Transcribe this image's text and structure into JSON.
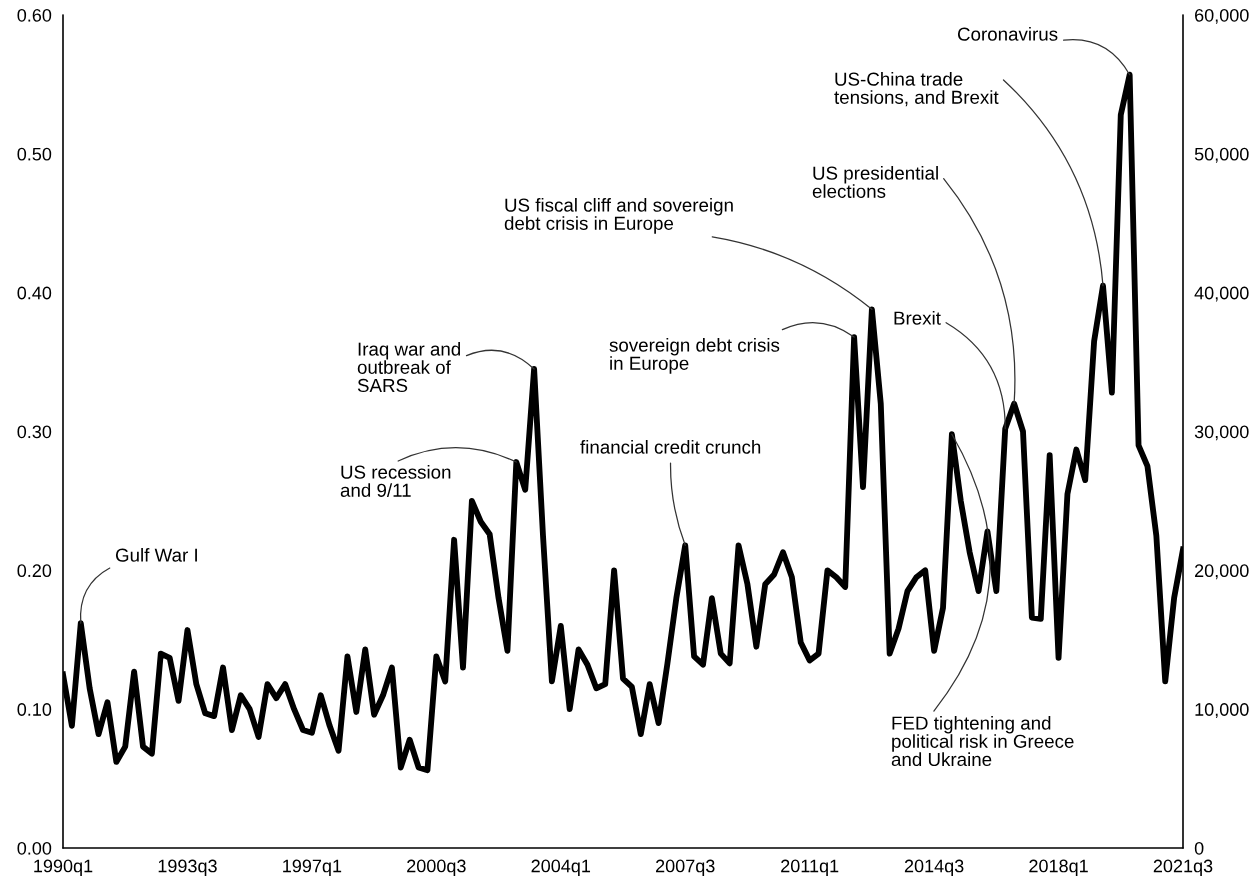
{
  "chart_data": {
    "type": "line",
    "x": [
      "1990-01",
      "1990-04",
      "1990-07",
      "1990-10",
      "1991-01",
      "1991-04",
      "1991-07",
      "1991-10",
      "1992-01",
      "1992-04",
      "1992-07",
      "1992-10",
      "1993-01",
      "1993-04",
      "1993-07",
      "1993-10",
      "1994-01",
      "1994-04",
      "1994-07",
      "1994-10",
      "1995-01",
      "1995-04",
      "1995-07",
      "1995-10",
      "1996-01",
      "1996-04",
      "1996-07",
      "1996-10",
      "1997-01",
      "1997-04",
      "1997-07",
      "1997-10",
      "1998-01",
      "1998-04",
      "1998-07",
      "1998-10",
      "1999-01",
      "1999-04",
      "1999-07",
      "1999-10",
      "2000-01",
      "2000-04",
      "2000-07",
      "2000-10",
      "2001-01",
      "2001-04",
      "2001-07",
      "2001-10",
      "2002-01",
      "2002-04",
      "2002-07",
      "2002-10",
      "2003-01",
      "2003-04",
      "2003-07",
      "2003-10",
      "2004-01",
      "2004-04",
      "2004-07",
      "2004-10",
      "2005-01",
      "2005-04",
      "2005-07",
      "2005-10",
      "2006-01",
      "2006-04",
      "2006-07",
      "2006-10",
      "2007-01",
      "2007-04",
      "2007-07",
      "2007-10",
      "2008-01",
      "2008-04",
      "2008-07",
      "2008-10",
      "2009-01",
      "2009-04",
      "2009-07",
      "2009-10",
      "2010-01",
      "2010-04",
      "2010-07",
      "2010-10",
      "2011-01",
      "2011-04",
      "2011-07",
      "2011-10",
      "2012-01",
      "2012-04",
      "2012-07",
      "2012-10",
      "2013-01",
      "2013-04",
      "2013-07",
      "2013-10",
      "2014-01",
      "2014-04",
      "2014-07",
      "2014-10",
      "2015-01",
      "2015-04",
      "2015-07",
      "2015-10",
      "2016-01",
      "2016-04",
      "2016-07",
      "2016-10",
      "2017-01",
      "2017-04",
      "2017-07",
      "2017-10",
      "2018-01",
      "2018-04",
      "2018-07",
      "2018-10",
      "2019-01",
      "2019-04",
      "2019-07",
      "2019-10",
      "2020-01",
      "2020-04",
      "2020-07",
      "2020-10",
      "2021-01",
      "2021-04",
      "2021-07"
    ],
    "series": [
      {
        "color": "#000000",
        "values": [
          0.125,
          0.088,
          0.162,
          0.115,
          0.082,
          0.105,
          0.062,
          0.073,
          0.127,
          0.073,
          0.068,
          0.14,
          0.137,
          0.106,
          0.157,
          0.118,
          0.097,
          0.095,
          0.13,
          0.085,
          0.11,
          0.1,
          0.08,
          0.118,
          0.108,
          0.118,
          0.1,
          0.085,
          0.083,
          0.11,
          0.088,
          0.07,
          0.138,
          0.098,
          0.143,
          0.096,
          0.11,
          0.13,
          0.058,
          0.078,
          0.058,
          0.056,
          0.138,
          0.12,
          0.222,
          0.13,
          0.25,
          0.235,
          0.226,
          0.18,
          0.142,
          0.278,
          0.258,
          0.345,
          0.225,
          0.12,
          0.16,
          0.1,
          0.143,
          0.132,
          0.115,
          0.118,
          0.2,
          0.122,
          0.116,
          0.082,
          0.118,
          0.09,
          0.133,
          0.18,
          0.218,
          0.138,
          0.132,
          0.18,
          0.14,
          0.133,
          0.218,
          0.19,
          0.145,
          0.19,
          0.197,
          0.213,
          0.195,
          0.148,
          0.135,
          0.14,
          0.2,
          0.195,
          0.188,
          0.368,
          0.26,
          0.388,
          0.32,
          0.14,
          0.158,
          0.185,
          0.195,
          0.2,
          0.142,
          0.173,
          0.298,
          0.25,
          0.213,
          0.185,
          0.228,
          0.185,
          0.302,
          0.32,
          0.3,
          0.166,
          0.165,
          0.283,
          0.137,
          0.255,
          0.287,
          0.265,
          0.365,
          0.405,
          0.328,
          0.528,
          0.557,
          0.29,
          0.275,
          0.225,
          0.12,
          0.18,
          0.215
        ]
      }
    ],
    "xlim": [
      "1990-01",
      "2021-07"
    ],
    "xticks": [
      {
        "value": "1990-01",
        "label": "1990q1"
      },
      {
        "value": "1993-07",
        "label": "1993q3"
      },
      {
        "value": "1997-01",
        "label": "1997q1"
      },
      {
        "value": "2000-07",
        "label": "2000q3"
      },
      {
        "value": "2004-01",
        "label": "2004q1"
      },
      {
        "value": "2007-07",
        "label": "2007q3"
      },
      {
        "value": "2011-01",
        "label": "2011q1"
      },
      {
        "value": "2014-07",
        "label": "2014q3"
      },
      {
        "value": "2018-01",
        "label": "2018q1"
      },
      {
        "value": "2021-07",
        "label": "2021q3"
      }
    ],
    "ylim": [
      0,
      0.6
    ],
    "yticks": [
      {
        "value": 0,
        "label": "0.00"
      },
      {
        "value": 0.1,
        "label": "0.10"
      },
      {
        "value": 0.2,
        "label": "0.20"
      },
      {
        "value": 0.3,
        "label": "0.30"
      },
      {
        "value": 0.4,
        "label": "0.40"
      },
      {
        "value": 0.5,
        "label": "0.50"
      },
      {
        "value": 0.6,
        "label": "0.60"
      }
    ],
    "y2lim": [
      0,
      60000
    ],
    "y2ticks": [
      0,
      {
        "value": 10000,
        "label": "10,000"
      },
      {
        "value": 20000,
        "label": "20,000"
      },
      {
        "value": 30000,
        "label": "30,000"
      },
      {
        "value": 40000,
        "label": "40,000"
      },
      {
        "value": 50000,
        "label": "50,000"
      },
      {
        "value": 60000,
        "label": "60,000"
      }
    ],
    "annotations": [
      {
        "text": "Gulf War I",
        "x": "1990-07",
        "y": 0.162
      },
      {
        "text": "US recession\nand 9/11",
        "x": "2002-10",
        "y": 0.278
      },
      {
        "text": "Iraq war and\noutbreak of\nSARS",
        "x": "2003-04",
        "y": 0.345
      },
      {
        "text": "financial credit crunch",
        "x": "2007-07",
        "y": 0.218
      },
      {
        "text": "sovereign debt crisis\nin Europe",
        "x": "2012-04",
        "y": 0.368
      },
      {
        "text": "US fiscal cliff and sovereign\ndebt crisis in Europe",
        "x": "2012-10",
        "y": 0.388
      },
      {
        "text": "FED tightening and\npolitical risk in Greece\nand Ukraine",
        "x": "2015-01",
        "y": 0.298
      },
      {
        "text": "Brexit",
        "x": "2016-07",
        "y": 0.302
      },
      {
        "text": "US presidential\nelections",
        "x": "2016-10",
        "y": 0.32
      },
      {
        "text": "US-China trade\ntensions, and Brexit",
        "x": "2019-04",
        "y": 0.405
      },
      {
        "text": "Coronavirus",
        "x": "2020-01",
        "y": 0.557
      }
    ],
    "grid": false,
    "legend": false,
    "marker": "none",
    "line_style": "solid"
  }
}
